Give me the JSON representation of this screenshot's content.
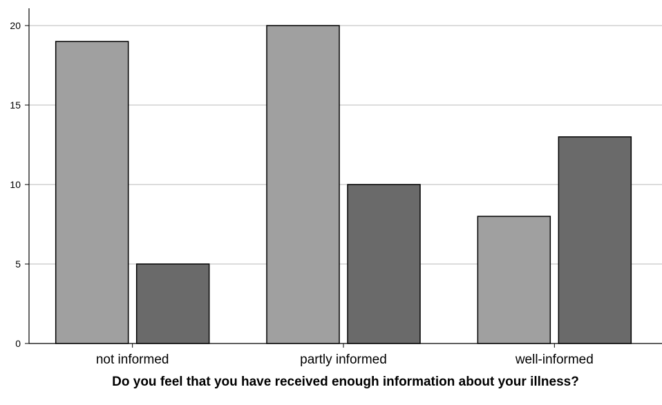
{
  "chart_data": {
    "type": "bar",
    "title": "",
    "xlabel": "Do you feel that you have received enough information about your illness?",
    "ylabel": "",
    "categories": [
      "not informed",
      "partly informed",
      "well-informed"
    ],
    "series": [
      {
        "values": [
          19,
          20,
          8
        ],
        "color": "#a0a0a0"
      },
      {
        "values": [
          5,
          10,
          13
        ],
        "color": "#6a6a6a"
      }
    ],
    "ylim": [
      0,
      20
    ],
    "yticks": [
      0,
      5,
      10,
      15,
      20
    ],
    "grid": true,
    "legend": "none"
  },
  "colors": {
    "gridline": "#c8c8c8",
    "axis": "#000000",
    "bar_border": "#000000"
  }
}
